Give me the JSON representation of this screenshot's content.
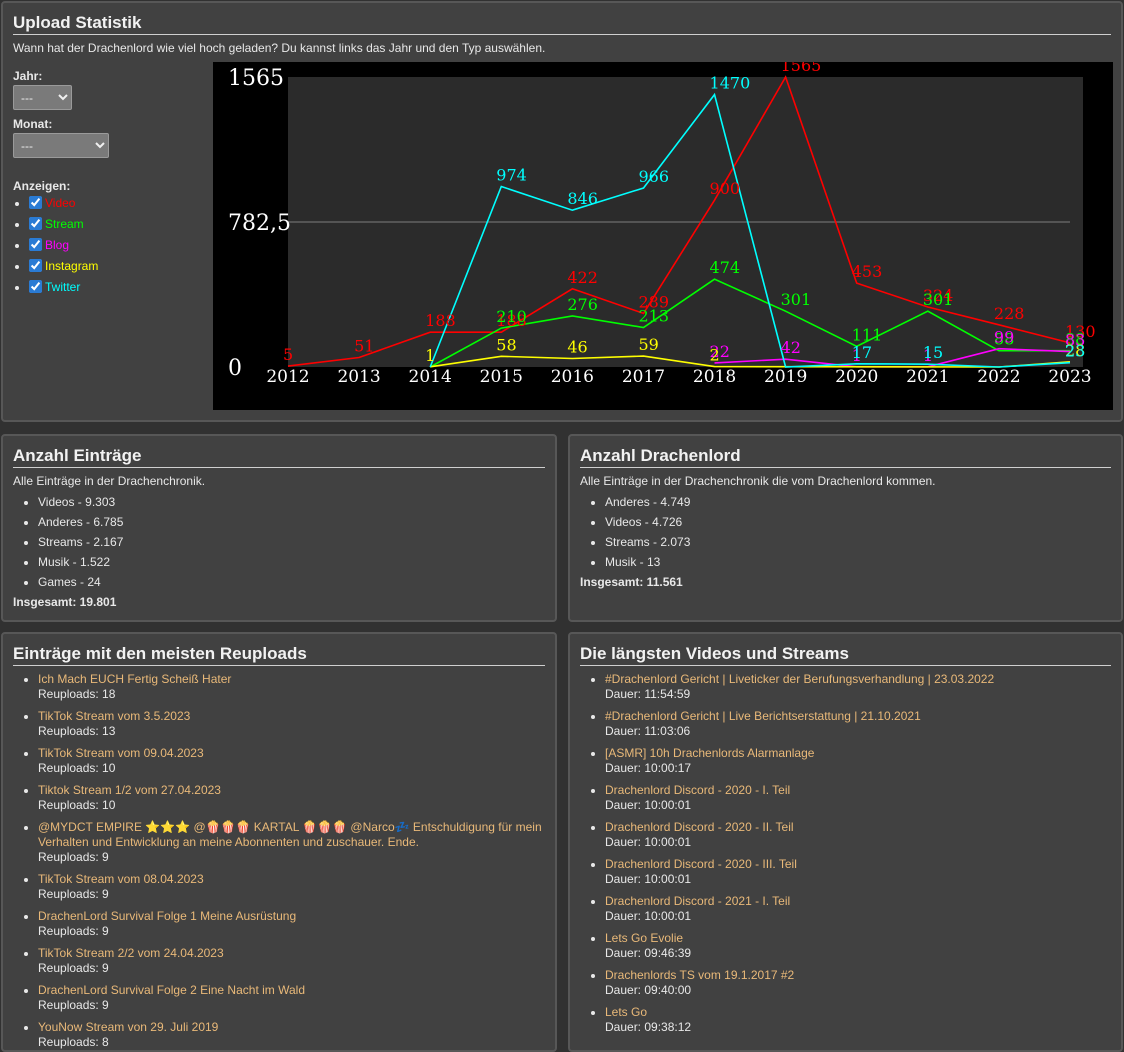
{
  "upload_stats": {
    "title": "Upload Statistik",
    "description": "Wann hat der Drachenlord wie viel hoch geladen? Du kannst links das Jahr und den Typ auswählen.",
    "year_label": "Jahr:",
    "year_value": "---",
    "month_label": "Monat:",
    "month_value": "---",
    "show_label": "Anzeigen:",
    "types": [
      {
        "label": "Video",
        "color": "#ff0000",
        "checked": true
      },
      {
        "label": "Stream",
        "color": "#00ff00",
        "checked": true
      },
      {
        "label": "Blog",
        "color": "#ff00ff",
        "checked": true
      },
      {
        "label": "Instagram",
        "color": "#ffff00",
        "checked": true
      },
      {
        "label": "Twitter",
        "color": "#00ffff",
        "checked": true
      }
    ]
  },
  "chart_data": {
    "type": "line",
    "x": [
      "2012",
      "2013",
      "2014",
      "2015",
      "2016",
      "2017",
      "2018",
      "2019",
      "2020",
      "2021",
      "2022",
      "2023"
    ],
    "ylim": [
      0,
      1565
    ],
    "y_ticks": [
      "0",
      "782,5",
      "1565"
    ],
    "grid": "midline",
    "series": [
      {
        "name": "Video",
        "color": "#ff0000",
        "values": [
          5,
          51,
          188,
          188,
          422,
          289,
          900,
          1565,
          453,
          324,
          228,
          130
        ]
      },
      {
        "name": "Stream",
        "color": "#00ff00",
        "values": [
          null,
          null,
          0,
          210,
          276,
          213,
          474,
          301,
          111,
          301,
          88,
          88
        ]
      },
      {
        "name": "Blog",
        "color": "#ff00ff",
        "values": [
          null,
          null,
          null,
          null,
          null,
          null,
          22,
          42,
          1,
          1,
          99,
          83
        ]
      },
      {
        "name": "Instagram",
        "color": "#ffff00",
        "values": [
          null,
          null,
          1,
          58,
          46,
          59,
          2,
          null,
          null,
          null,
          0,
          28
        ]
      },
      {
        "name": "Twitter",
        "color": "#00ffff",
        "values": [
          null,
          null,
          0,
          974,
          846,
          966,
          1470,
          0,
          17,
          15,
          0,
          23
        ]
      }
    ]
  },
  "entries": {
    "title": "Anzahl Einträge",
    "description": "Alle Einträge in der Drachenchronik.",
    "items": [
      "Videos - 9.303",
      "Anderes - 6.785",
      "Streams - 2.167",
      "Musik - 1.522",
      "Games - 24"
    ],
    "total": "Insgesamt: 19.801"
  },
  "drachenlord": {
    "title": "Anzahl Drachenlord",
    "description": "Alle Einträge in der Drachenchronik die vom Drachenlord kommen.",
    "items": [
      "Anderes - 4.749",
      "Videos - 4.726",
      "Streams - 2.073",
      "Musik - 13"
    ],
    "total": "Insgesamt: 11.561"
  },
  "reuploads": {
    "title": "Einträge mit den meisten Reuploads",
    "items": [
      {
        "title": "Ich Mach EUCH Fertig Scheiß Hater",
        "sub": "Reuploads: 18"
      },
      {
        "title": "TikTok Stream vom 3.5.2023",
        "sub": "Reuploads: 13"
      },
      {
        "title": "TikTok Stream vom 09.04.2023",
        "sub": "Reuploads: 10"
      },
      {
        "title": "Tiktok Stream 1/2 vom 27.04.2023",
        "sub": "Reuploads: 10"
      },
      {
        "title": "@MYDCT EMPIRE ⭐⭐⭐ @🍿🍿🍿 KARTAL 🍿🍿🍿 @Narco💤 Entschuldigung für mein Verhalten und Entwicklung an meine Abonnenten und zuschauer. Ende.",
        "sub": "Reuploads: 9"
      },
      {
        "title": "TikTok Stream vom 08.04.2023",
        "sub": "Reuploads: 9"
      },
      {
        "title": "DrachenLord Survival Folge 1 Meine Ausrüstung",
        "sub": "Reuploads: 9"
      },
      {
        "title": "TikTok Stream 2/2 vom 24.04.2023",
        "sub": "Reuploads: 9"
      },
      {
        "title": "DrachenLord Survival Folge 2 Eine Nacht im Wald",
        "sub": "Reuploads: 9"
      },
      {
        "title": "YouNow Stream von 29. Juli 2019",
        "sub": "Reuploads: 8"
      }
    ]
  },
  "longest": {
    "title": "Die längsten Videos und Streams",
    "items": [
      {
        "title": "#Drachenlord Gericht | Liveticker der Berufungsverhandlung | 23.03.2022",
        "sub": "Dauer: 11:54:59"
      },
      {
        "title": "#Drachenlord Gericht | Live Berichtserstattung | 21.10.2021",
        "sub": "Dauer: 11:03:06"
      },
      {
        "title": "[ASMR] 10h Drachenlords Alarmanlage",
        "sub": "Dauer: 10:00:17"
      },
      {
        "title": "Drachenlord Discord - 2020 - I. Teil",
        "sub": "Dauer: 10:00:01"
      },
      {
        "title": "Drachenlord Discord - 2020 - II. Teil",
        "sub": "Dauer: 10:00:01"
      },
      {
        "title": "Drachenlord Discord - 2020 - III. Teil",
        "sub": "Dauer: 10:00:01"
      },
      {
        "title": "Drachenlord Discord - 2021 - I. Teil",
        "sub": "Dauer: 10:00:01"
      },
      {
        "title": "Lets Go Evolie",
        "sub": "Dauer: 09:46:39"
      },
      {
        "title": "Drachenlords TS vom 19.1.2017 #2",
        "sub": "Dauer: 09:40:00"
      },
      {
        "title": "Lets Go",
        "sub": "Dauer: 09:38:12"
      }
    ]
  }
}
